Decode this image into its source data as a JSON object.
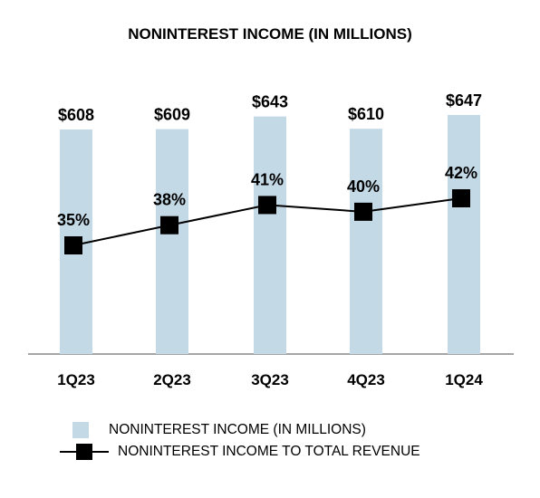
{
  "chart_data": {
    "type": "bar",
    "title": "NONINTEREST INCOME (IN MILLIONS)",
    "categories": [
      "1Q23",
      "2Q23",
      "3Q23",
      "4Q23",
      "1Q24"
    ],
    "series": [
      {
        "name": "NONINTEREST INCOME (IN MILLIONS)",
        "type": "bar",
        "values": [
          608,
          609,
          643,
          610,
          647
        ],
        "labels": [
          "$608",
          "$609",
          "$643",
          "$610",
          "$647"
        ],
        "color": "#c4d9e6"
      },
      {
        "name": "NONINTEREST INCOME TO TOTAL REVENUE",
        "type": "line",
        "values": [
          35,
          38,
          41,
          40,
          42
        ],
        "labels": [
          "35%",
          "38%",
          "41%",
          "40%",
          "42%"
        ],
        "color": "#000000",
        "marker": "square"
      }
    ],
    "ylim": [
      0,
      700
    ],
    "grid": false,
    "legend_position": "bottom"
  }
}
